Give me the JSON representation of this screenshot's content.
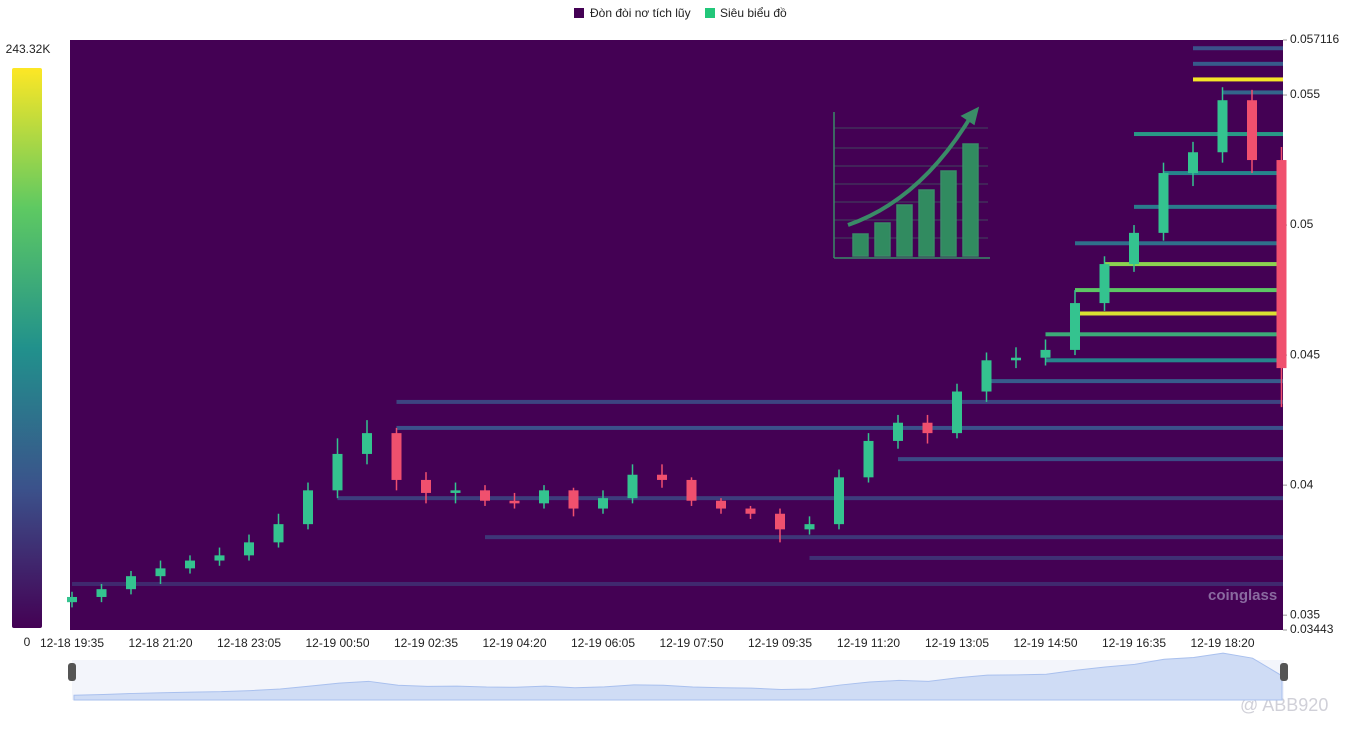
{
  "chart_data": {
    "type": "candlestick",
    "legend": [
      "Đòn đòi nơ tích lũy",
      "Siêu biểu đồ"
    ],
    "legend_colors": [
      "#440154",
      "#22c77a"
    ],
    "watermark": "coinglass",
    "credit": "@ ABB920",
    "categories": [
      "12-18 19:35",
      null,
      null,
      "12-18 21:20",
      null,
      null,
      "12-18 23:05",
      null,
      null,
      "12-19 00:50",
      null,
      null,
      "12-19 02:35",
      null,
      null,
      "12-19 04:20",
      null,
      null,
      "12-19 06:05",
      null,
      null,
      "12-19 07:50",
      null,
      null,
      "12-19 09:35",
      null,
      null,
      "12-19 11:20",
      null,
      null,
      "12-19 13:05",
      null,
      null,
      "12-19 14:50",
      null,
      null,
      "12-19 16:35",
      null,
      null,
      "12-19 18:20",
      null,
      null
    ],
    "open": [
      0.0355,
      0.0357,
      0.036,
      0.0365,
      0.0368,
      0.0371,
      0.0373,
      0.0378,
      0.0385,
      0.0398,
      0.0412,
      0.042,
      0.0402,
      0.0397,
      0.0398,
      0.0394,
      0.0393,
      0.0398,
      0.0391,
      0.0395,
      0.0404,
      0.0402,
      0.0394,
      0.0391,
      0.0389,
      0.0383,
      0.0385,
      0.0403,
      0.0417,
      0.0424,
      0.042,
      0.0436,
      0.0448,
      0.0449,
      0.0452,
      0.047,
      0.0485,
      0.0497,
      0.052,
      0.0528,
      0.0548,
      0.0525
    ],
    "high": [
      0.0359,
      0.0362,
      0.0367,
      0.0371,
      0.0373,
      0.0376,
      0.0381,
      0.0389,
      0.0401,
      0.0418,
      0.0425,
      0.0422,
      0.0405,
      0.0401,
      0.04,
      0.0397,
      0.04,
      0.0399,
      0.0398,
      0.0408,
      0.0408,
      0.0403,
      0.0395,
      0.0392,
      0.0391,
      0.0388,
      0.0406,
      0.042,
      0.0427,
      0.0427,
      0.0439,
      0.0451,
      0.0453,
      0.0456,
      0.0475,
      0.0488,
      0.05,
      0.0524,
      0.0532,
      0.0553,
      0.0552,
      0.053
    ],
    "low": [
      0.0353,
      0.0355,
      0.0358,
      0.0362,
      0.0366,
      0.0369,
      0.0371,
      0.0376,
      0.0383,
      0.0395,
      0.0408,
      0.0398,
      0.0393,
      0.0393,
      0.0392,
      0.0391,
      0.0391,
      0.0388,
      0.0389,
      0.0393,
      0.0399,
      0.0392,
      0.0389,
      0.0387,
      0.0378,
      0.0381,
      0.0383,
      0.0401,
      0.0414,
      0.0416,
      0.0418,
      0.0432,
      0.0445,
      0.0446,
      0.045,
      0.0467,
      0.0482,
      0.0494,
      0.0515,
      0.0524,
      0.052,
      0.043
    ],
    "close": [
      0.0357,
      0.036,
      0.0365,
      0.0368,
      0.0371,
      0.0373,
      0.0378,
      0.0385,
      0.0398,
      0.0412,
      0.042,
      0.0402,
      0.0397,
      0.0398,
      0.0394,
      0.0393,
      0.0398,
      0.0391,
      0.0395,
      0.0404,
      0.0402,
      0.0394,
      0.0391,
      0.0389,
      0.0383,
      0.0385,
      0.0403,
      0.0417,
      0.0424,
      0.042,
      0.0436,
      0.0448,
      0.0449,
      0.0452,
      0.047,
      0.0485,
      0.0497,
      0.052,
      0.0528,
      0.0548,
      0.0525,
      0.0445
    ],
    "up_color": "#34c38f",
    "down_color": "#f0506e",
    "levels": {
      "price": [
        0.0568,
        0.0562,
        0.0556,
        0.0551,
        0.0535,
        0.052,
        0.0507,
        0.0493,
        0.0485,
        0.0475,
        0.0466,
        0.0458,
        0.0448,
        0.044,
        0.0432,
        0.0422,
        0.041,
        0.0395,
        0.038,
        0.0372,
        0.0362
      ],
      "start": [
        38,
        38,
        38,
        39,
        36,
        37,
        36,
        34,
        35,
        34,
        34,
        33,
        33,
        31,
        11,
        11,
        28,
        9,
        14,
        25,
        0
      ],
      "intensity": [
        60000,
        70000,
        240000,
        80000,
        130000,
        110000,
        100000,
        90000,
        200000,
        180000,
        230000,
        150000,
        110000,
        70000,
        50000,
        60000,
        55000,
        45000,
        40000,
        35000,
        30000
      ]
    },
    "ylim": [
      0.03443,
      0.057116
    ],
    "yticks": [
      0.03443,
      0.035,
      0.04,
      0.045,
      0.05,
      0.055,
      0.057116
    ],
    "zlim": [
      0,
      243320
    ],
    "zticks": [
      0,
      {
        "value": 243320,
        "label": "243.32K"
      }
    ],
    "colormap": [
      "#440154",
      "#3b528b",
      "#21918c",
      "#5ec962",
      "#fde725"
    ]
  }
}
